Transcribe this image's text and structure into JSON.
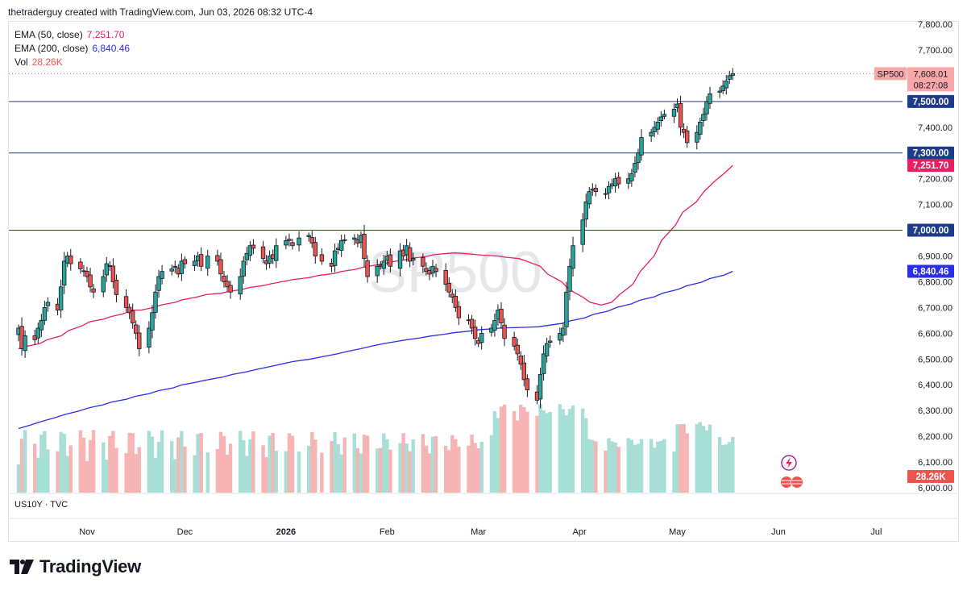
{
  "header": {
    "credit": "thetraderguy created with TradingView.com, Jun 03, 2026 08:32 UTC-4"
  },
  "legend": {
    "ema50": {
      "label": "EMA (50, close)",
      "value": "7,251.70",
      "color": "#e91e63"
    },
    "ema200": {
      "label": "EMA (200, close)",
      "value": "6,840.46",
      "color": "#2a2ee8"
    },
    "vol": {
      "label": "Vol",
      "value": "28.26K",
      "color": "#ef5350"
    }
  },
  "watermark": "SP500",
  "subpane_label": "US10Y · TVC",
  "footer": {
    "brand": "TradingView"
  },
  "chart_data": {
    "type": "candlestick",
    "symbol": "SP500",
    "ylim": [
      6000,
      7800
    ],
    "y_ticks": [
      "6,000.00",
      "6,100.00",
      "6,200.00",
      "6,300.00",
      "6,400.00",
      "6,500.00",
      "6,600.00",
      "6,700.00",
      "6,800.00",
      "6,900.00",
      "7,000.00",
      "7,100.00",
      "7,200.00",
      "7,300.00",
      "7,400.00",
      "7,500.00",
      "7,600.00",
      "7,700.00",
      "7,800.00"
    ],
    "x_ticks": [
      {
        "label": "Nov",
        "bold": false,
        "day": 21
      },
      {
        "label": "Dec",
        "bold": false,
        "day": 51
      },
      {
        "label": "2026",
        "bold": true,
        "day": 82
      },
      {
        "label": "Feb",
        "bold": false,
        "day": 113
      },
      {
        "label": "Mar",
        "bold": false,
        "day": 141
      },
      {
        "label": "Apr",
        "bold": false,
        "day": 172
      },
      {
        "label": "May",
        "bold": false,
        "day": 202
      },
      {
        "label": "Jun",
        "bold": false,
        "day": 233
      },
      {
        "label": "Jul",
        "bold": false,
        "day": 263
      }
    ],
    "horizontal_lines": [
      {
        "value": 7500,
        "label": "7,500.00",
        "color": "#1e3a8a"
      },
      {
        "value": 7300,
        "label": "7,300.00",
        "color": "#1e3a8a"
      },
      {
        "value": 7000,
        "label": "7,000.00",
        "color": "#1e3a8a"
      }
    ],
    "last_price": {
      "value": 7608.01,
      "label": "7,608.01",
      "countdown": "08:27:08",
      "symbol": "SP500"
    },
    "ema50_last": {
      "value": 7251.7,
      "label": "7,251.70"
    },
    "ema200_last": {
      "value": 6840.46,
      "label": "6,840.46"
    },
    "volume_last": "28.26K",
    "closes": [
      6620,
      6540,
      6590,
      6575,
      6620,
      6650,
      6700,
      6720,
      6690,
      6780,
      6880,
      6900,
      6870,
      6850,
      6840,
      6820,
      6780,
      6760,
      6820,
      6870,
      6860,
      6800,
      6750,
      6700,
      6680,
      6640,
      6600,
      6540,
      6620,
      6680,
      6760,
      6820,
      6840,
      6850,
      6860,
      6830,
      6880,
      6870,
      6880,
      6900,
      6860,
      6900,
      6880,
      6830,
      6800,
      6780,
      6760,
      6820,
      6880,
      6910,
      6940,
      6930,
      6890,
      6870,
      6900,
      6890,
      6940,
      6960,
      6960,
      6940,
      6970,
      6980,
      6950,
      6900,
      6880,
      6860,
      6920,
      6930,
      6960,
      6960,
      6970,
      6950,
      6980,
      6890,
      6820,
      6860,
      6860,
      6880,
      6900,
      6860,
      6920,
      6900,
      6940,
      6880,
      6890,
      6860,
      6840,
      6830,
      6860,
      6840,
      6790,
      6760,
      6740,
      6700,
      6660,
      6650,
      6620,
      6580,
      6560,
      6600,
      6620,
      6650,
      6690,
      6640,
      6580,
      6550,
      6520,
      6480,
      6420,
      6380,
      6340,
      6440,
      6520,
      6560,
      6570,
      6600,
      6620,
      6760,
      6860,
      6940,
      7040,
      7110,
      7150,
      7160,
      7150,
      7140,
      7170,
      7180,
      7200,
      7180,
      7200,
      7220,
      7260,
      7300,
      7360,
      7380,
      7400,
      7420,
      7440,
      7450,
      7470,
      7490,
      7400,
      7380,
      7340,
      7380,
      7420,
      7450,
      7500,
      7530,
      7540,
      7560,
      7580,
      7600,
      7608.01
    ],
    "ema50": [
      6540,
      6550,
      6560,
      6575,
      6590,
      6610,
      6630,
      6645,
      6655,
      6665,
      6675,
      6690,
      6690,
      6700,
      6710,
      6720,
      6730,
      6740,
      6750,
      6755,
      6762,
      6770,
      6778,
      6785,
      6792,
      6800,
      6808,
      6816,
      6824,
      6832,
      6840,
      6848,
      6856,
      6864,
      6870,
      6878,
      6885,
      6892,
      6898,
      6905,
      6910,
      6912,
      6908,
      6905,
      6902,
      6900,
      6895,
      6890,
      6880,
      6860,
      6830,
      6800,
      6770,
      6740,
      6720,
      6710,
      6720,
      6750,
      6790,
      6840,
      6900,
      6960,
      7020,
      7070,
      7110,
      7150,
      7190,
      7225,
      7251.7
    ],
    "ema200": [
      6230,
      6244,
      6258,
      6272,
      6285,
      6298,
      6310,
      6322,
      6333,
      6344,
      6355,
      6366,
      6377,
      6388,
      6399,
      6410,
      6420,
      6430,
      6440,
      6450,
      6460,
      6470,
      6480,
      6490,
      6500,
      6510,
      6520,
      6530,
      6540,
      6550,
      6560,
      6568,
      6575,
      6582,
      6589,
      6596,
      6602,
      6608,
      6613,
      6617,
      6620,
      6622,
      6623,
      6625,
      6630,
      6638,
      6648,
      6660,
      6673,
      6686,
      6700,
      6714,
      6728,
      6742,
      6756,
      6770,
      6784,
      6798,
      6812,
      6826,
      6840.46
    ]
  }
}
